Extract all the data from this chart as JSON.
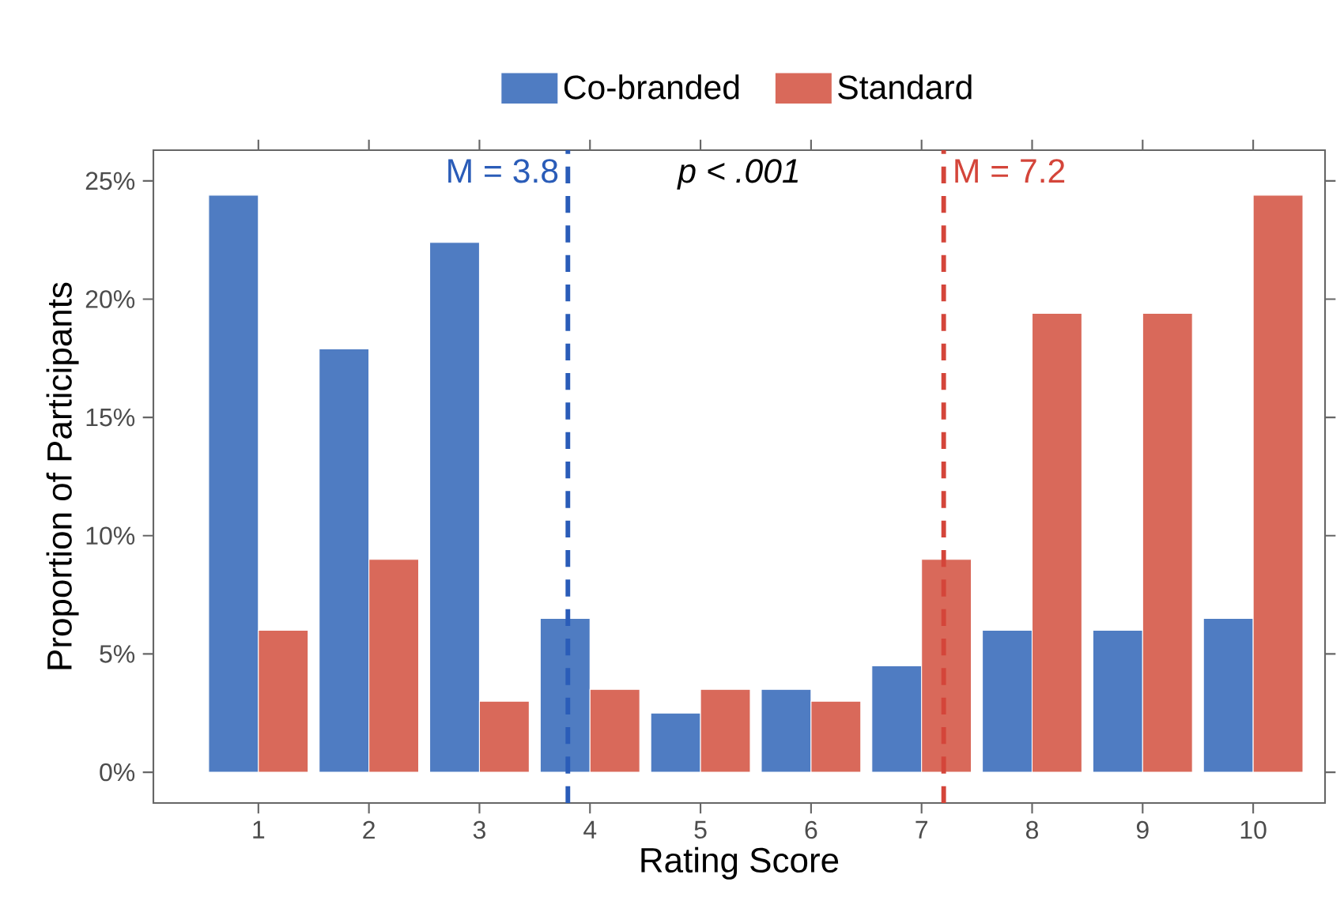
{
  "chart_data": {
    "type": "bar",
    "x": [
      1,
      2,
      3,
      4,
      5,
      6,
      7,
      8,
      9,
      10
    ],
    "series": [
      {
        "name": "Co-branded",
        "color": "#4f7cc2",
        "values": [
          24.4,
          17.9,
          22.4,
          6.5,
          2.5,
          3.5,
          4.5,
          6,
          6,
          6.5
        ]
      },
      {
        "name": "Standard",
        "color": "#d9695a",
        "values": [
          6,
          9,
          3,
          3.5,
          3.5,
          3,
          9,
          19.4,
          19.4,
          24.4
        ]
      }
    ],
    "xlabel": "Rating Score",
    "ylabel": "Proportion of Participants",
    "xlim": [
      0.05,
      10.65
    ],
    "xticks": [
      1,
      2,
      3,
      4,
      5,
      6,
      7,
      8,
      9,
      10
    ],
    "ylim": [
      -1.3,
      26.3
    ],
    "yticks": [
      {
        "value": 0,
        "label": "0%"
      },
      {
        "value": 5,
        "label": "5%"
      },
      {
        "value": 10,
        "label": "10%"
      },
      {
        "value": 15,
        "label": "15%"
      },
      {
        "value": 20,
        "label": "20%"
      },
      {
        "value": 25,
        "label": "25%"
      }
    ],
    "ref_lines": [
      {
        "axis": "x",
        "value": 3.8,
        "label": "M = 3.8",
        "color": "#2a5cb8",
        "line_style": "dashed"
      },
      {
        "axis": "x",
        "value": 7.2,
        "label": "M = 7.2",
        "color": "#d4453a",
        "line_style": "dashed"
      }
    ],
    "annotations": [
      "*p < .001*"
    ],
    "legend": "top",
    "grid": false
  }
}
